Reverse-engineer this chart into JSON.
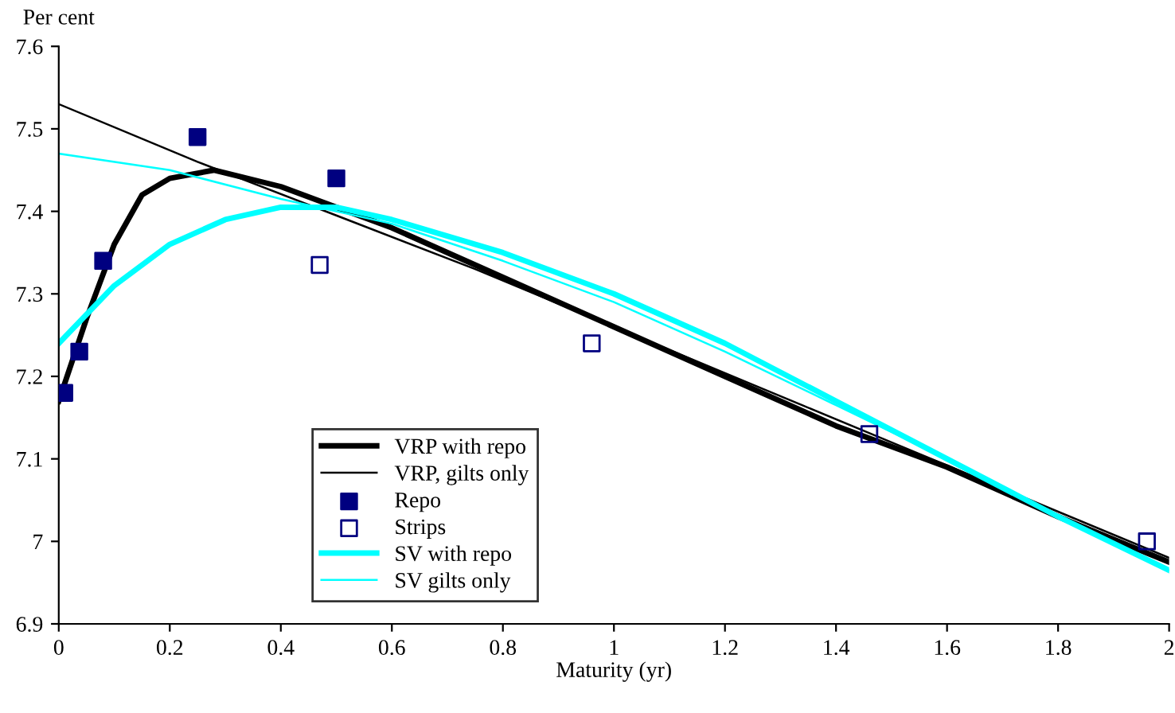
{
  "chart_data": {
    "type": "line",
    "xlabel": "Maturity (yr)",
    "ylabel": "Per cent",
    "xlim": [
      0,
      2
    ],
    "ylim": [
      6.9,
      7.6
    ],
    "xticks": [
      0,
      0.2,
      0.4,
      0.6,
      0.8,
      1,
      1.2,
      1.4,
      1.6,
      1.8,
      2
    ],
    "yticks": [
      6.9,
      7,
      7.1,
      7.2,
      7.3,
      7.4,
      7.5,
      7.6
    ],
    "grid": false,
    "legend": "bottom",
    "marker": "none",
    "line_style": "solid",
    "series": [
      {
        "name": "VRP with repo",
        "color": "#000000",
        "x": [
          0,
          0.05,
          0.1,
          0.15,
          0.2,
          0.28,
          0.4,
          0.6,
          0.8,
          1.0,
          1.2,
          1.4,
          1.6,
          1.8,
          2.0
        ],
        "values": [
          7.17,
          7.27,
          7.36,
          7.42,
          7.44,
          7.45,
          7.43,
          7.38,
          7.32,
          7.26,
          7.2,
          7.14,
          7.09,
          7.03,
          6.975
        ]
      },
      {
        "name": "VRP, gilts only",
        "color": "#000000",
        "x": [
          0,
          0.25,
          0.5,
          0.75,
          1.0,
          1.25,
          1.5,
          1.75,
          2.0
        ],
        "values": [
          7.53,
          7.46,
          7.395,
          7.33,
          7.26,
          7.19,
          7.12,
          7.05,
          6.98
        ]
      },
      {
        "name": "Repo",
        "type": "scatter",
        "marker": "square",
        "color": "#000080",
        "x": [
          0.01,
          0.037,
          0.08,
          0.25,
          0.5
        ],
        "values": [
          7.18,
          7.23,
          7.34,
          7.49,
          7.44
        ]
      },
      {
        "name": "Strips",
        "type": "scatter",
        "marker": "square",
        "color": "#000080",
        "x": [
          0.47,
          0.96,
          1.46,
          1.96
        ],
        "values": [
          7.335,
          7.24,
          7.13,
          7.0
        ]
      },
      {
        "name": "SV with repo",
        "color": "#00ffff",
        "x": [
          0,
          0.1,
          0.2,
          0.3,
          0.4,
          0.5,
          0.6,
          0.8,
          1.0,
          1.2,
          1.4,
          1.6,
          1.8,
          2.0
        ],
        "values": [
          7.24,
          7.31,
          7.36,
          7.39,
          7.405,
          7.405,
          7.39,
          7.35,
          7.3,
          7.24,
          7.17,
          7.1,
          7.03,
          6.965
        ]
      },
      {
        "name": "SV gilts only",
        "color": "#00ffff",
        "x": [
          0,
          0.2,
          0.4,
          0.6,
          0.8,
          1.0,
          1.2,
          1.4,
          1.6,
          1.8,
          2.0
        ],
        "values": [
          7.47,
          7.45,
          7.415,
          7.385,
          7.34,
          7.29,
          7.23,
          7.165,
          7.1,
          7.03,
          6.965
        ]
      }
    ]
  }
}
